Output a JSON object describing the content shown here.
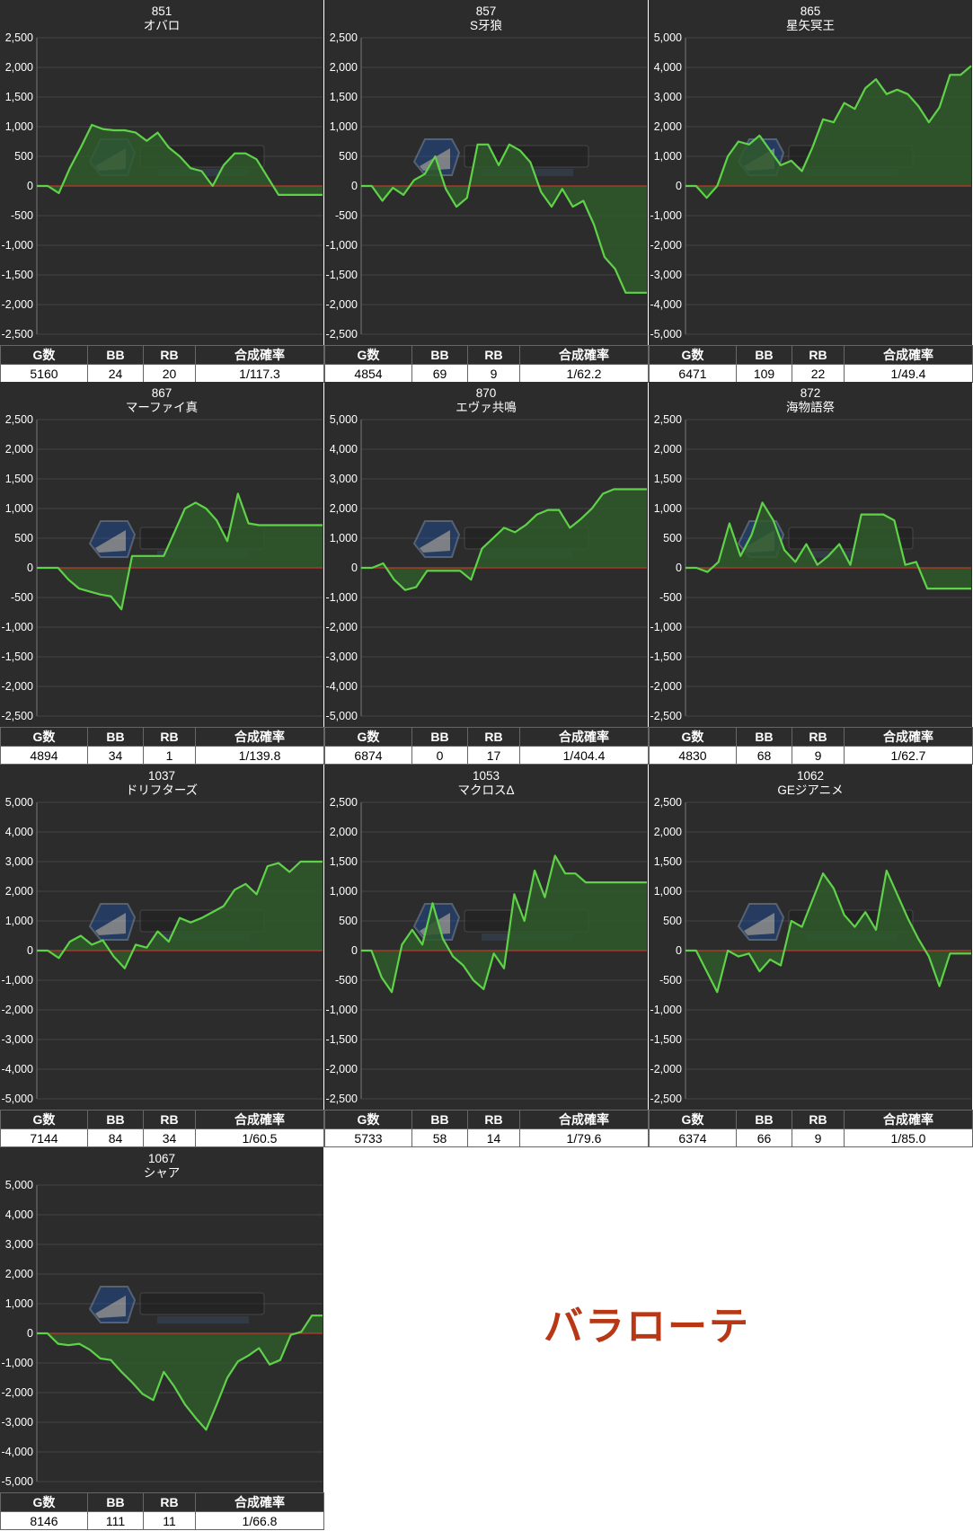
{
  "tag_text": "バラローテ",
  "colors": {
    "line": "#5fd24a",
    "fill": "#2f5a2c",
    "zero": "#c0392b",
    "panel": "#2c2c2c"
  },
  "table_headers": [
    "G数",
    "BB",
    "RB",
    "合成確率"
  ],
  "chart_data": [
    {
      "type": "area",
      "id": "851",
      "name": "オバロ",
      "ylim": [
        -2500,
        2500
      ],
      "yticks": [
        "2,500",
        "2,000",
        "1,500",
        "1,000",
        "500",
        "0",
        "-500",
        "-1,000",
        "-1,500",
        "-2,000",
        "-2,500"
      ],
      "values": [
        0,
        0,
        -120,
        300,
        650,
        1030,
        960,
        940,
        940,
        900,
        760,
        900,
        650,
        500,
        300,
        250,
        0,
        350,
        550,
        550,
        450,
        150,
        -150,
        -150,
        -150,
        -150,
        -150
      ],
      "stats": {
        "g": "5160",
        "bb": "24",
        "rb": "20",
        "prob": "1/117.3"
      }
    },
    {
      "type": "area",
      "id": "857",
      "name": "S牙狼",
      "ylim": [
        -2500,
        2500
      ],
      "yticks": [
        "2,500",
        "2,000",
        "1,500",
        "1,000",
        "500",
        "0",
        "-500",
        "-1,000",
        "-1,500",
        "-2,000",
        "-2,500"
      ],
      "values": [
        0,
        0,
        -250,
        -30,
        -150,
        100,
        200,
        500,
        -50,
        -350,
        -200,
        700,
        700,
        350,
        700,
        600,
        400,
        -100,
        -350,
        -50,
        -350,
        -250,
        -650,
        -1200,
        -1400,
        -1800,
        -1800,
        -1800
      ],
      "stats": {
        "g": "4854",
        "bb": "69",
        "rb": "9",
        "prob": "1/62.2"
      }
    },
    {
      "type": "area",
      "id": "865",
      "name": "星矢冥王",
      "ylim": [
        -5000,
        5000
      ],
      "yticks": [
        "5,000",
        "4,000",
        "3,000",
        "2,000",
        "1,000",
        "0",
        "-1,000",
        "-2,000",
        "-3,000",
        "-4,000",
        "-5,000"
      ],
      "values": [
        0,
        0,
        -400,
        0,
        1000,
        1500,
        1400,
        1700,
        1200,
        700,
        850,
        500,
        1300,
        2250,
        2150,
        2800,
        2600,
        3300,
        3600,
        3100,
        3250,
        3100,
        2700,
        2150,
        2650,
        3750,
        3750,
        4050
      ],
      "stats": {
        "g": "6471",
        "bb": "109",
        "rb": "22",
        "prob": "1/49.4"
      }
    },
    {
      "type": "area",
      "id": "867",
      "name": "マーファイ真",
      "ylim": [
        -2500,
        2500
      ],
      "yticks": [
        "2,500",
        "2,000",
        "1,500",
        "1,000",
        "500",
        "0",
        "-500",
        "-1,000",
        "-1,500",
        "-2,000",
        "-2,500"
      ],
      "values": [
        0,
        0,
        0,
        -200,
        -350,
        -400,
        -450,
        -480,
        -700,
        200,
        200,
        200,
        200,
        600,
        1000,
        1100,
        1000,
        800,
        450,
        1250,
        750,
        720,
        720,
        720,
        720,
        720,
        720,
        720
      ],
      "stats": {
        "g": "4894",
        "bb": "34",
        "rb": "1",
        "prob": "1/139.8"
      }
    },
    {
      "type": "area",
      "id": "870",
      "name": "エヴァ共鳴",
      "ylim": [
        -5000,
        5000
      ],
      "yticks": [
        "5,000",
        "4,000",
        "3,000",
        "2,000",
        "1,000",
        "0",
        "-1,000",
        "-2,000",
        "-3,000",
        "-4,000",
        "-5,000"
      ],
      "values": [
        0,
        0,
        150,
        -400,
        -750,
        -650,
        -100,
        -100,
        -100,
        -100,
        -400,
        650,
        1000,
        1350,
        1200,
        1450,
        1800,
        1950,
        1950,
        1350,
        1650,
        2000,
        2500,
        2650,
        2650,
        2650,
        2650
      ],
      "stats": {
        "g": "6874",
        "bb": "0",
        "rb": "17",
        "prob": "1/404.4"
      }
    },
    {
      "type": "area",
      "id": "872",
      "name": "海物語祭",
      "ylim": [
        -2500,
        2500
      ],
      "yticks": [
        "2,500",
        "2,000",
        "1,500",
        "1,000",
        "500",
        "0",
        "-500",
        "-1,000",
        "-1,500",
        "-2,000",
        "-2,500"
      ],
      "values": [
        0,
        0,
        -70,
        100,
        750,
        200,
        550,
        1100,
        800,
        300,
        100,
        400,
        50,
        200,
        400,
        50,
        900,
        900,
        900,
        800,
        50,
        100,
        -350,
        -350,
        -350,
        -350,
        -350
      ],
      "stats": {
        "g": "4830",
        "bb": "68",
        "rb": "9",
        "prob": "1/62.7"
      }
    },
    {
      "type": "area",
      "id": "1037",
      "name": "ドリフターズ",
      "ylim": [
        -5000,
        5000
      ],
      "yticks": [
        "5,000",
        "4,000",
        "3,000",
        "2,000",
        "1,000",
        "0",
        "-1,000",
        "-2,000",
        "-3,000",
        "-4,000",
        "-5,000"
      ],
      "values": [
        0,
        0,
        -250,
        300,
        500,
        200,
        350,
        -200,
        -600,
        200,
        100,
        650,
        300,
        1100,
        950,
        1100,
        1300,
        1500,
        2050,
        2250,
        1900,
        2850,
        2950,
        2650,
        3000,
        3000,
        3000
      ],
      "stats": {
        "g": "7144",
        "bb": "84",
        "rb": "34",
        "prob": "1/60.5"
      }
    },
    {
      "type": "area",
      "id": "1053",
      "name": "マクロスΔ",
      "ylim": [
        -2500,
        2500
      ],
      "yticks": [
        "2,500",
        "2,000",
        "1,500",
        "1,000",
        "500",
        "0",
        "-500",
        "-1,000",
        "-1,500",
        "-2,000",
        "-2,500"
      ],
      "values": [
        0,
        0,
        -450,
        -700,
        100,
        350,
        100,
        800,
        200,
        -100,
        -250,
        -500,
        -650,
        -50,
        -300,
        950,
        500,
        1350,
        900,
        1600,
        1300,
        1300,
        1150,
        1150,
        1150,
        1150,
        1150,
        1150,
        1150
      ],
      "stats": {
        "g": "5733",
        "bb": "58",
        "rb": "14",
        "prob": "1/79.6"
      }
    },
    {
      "type": "area",
      "id": "1062",
      "name": "GEジアニメ",
      "ylim": [
        -2500,
        2500
      ],
      "yticks": [
        "2,500",
        "2,000",
        "1,500",
        "1,000",
        "500",
        "0",
        "-500",
        "-1,000",
        "-1,500",
        "-2,000",
        "-2,500"
      ],
      "values": [
        0,
        0,
        -350,
        -700,
        0,
        -100,
        -50,
        -350,
        -150,
        -250,
        500,
        400,
        850,
        1300,
        1050,
        600,
        400,
        650,
        350,
        1350,
        950,
        550,
        200,
        -100,
        -600,
        -50,
        -50,
        -50
      ],
      "stats": {
        "g": "6374",
        "bb": "66",
        "rb": "9",
        "prob": "1/85.0"
      }
    },
    {
      "type": "area",
      "id": "1067",
      "name": "シャア",
      "ylim": [
        -5000,
        5000
      ],
      "yticks": [
        "5,000",
        "4,000",
        "3,000",
        "2,000",
        "1,000",
        "0",
        "-1,000",
        "-2,000",
        "-3,000",
        "-4,000",
        "-5,000"
      ],
      "values": [
        0,
        0,
        -350,
        -400,
        -350,
        -550,
        -850,
        -900,
        -1300,
        -1650,
        -2050,
        -2250,
        -1300,
        -1800,
        -2400,
        -2850,
        -3250,
        -2400,
        -1500,
        -950,
        -750,
        -500,
        -1050,
        -900,
        -50,
        50,
        600,
        600
      ],
      "stats": {
        "g": "8146",
        "bb": "111",
        "rb": "11",
        "prob": "1/66.8"
      }
    }
  ]
}
